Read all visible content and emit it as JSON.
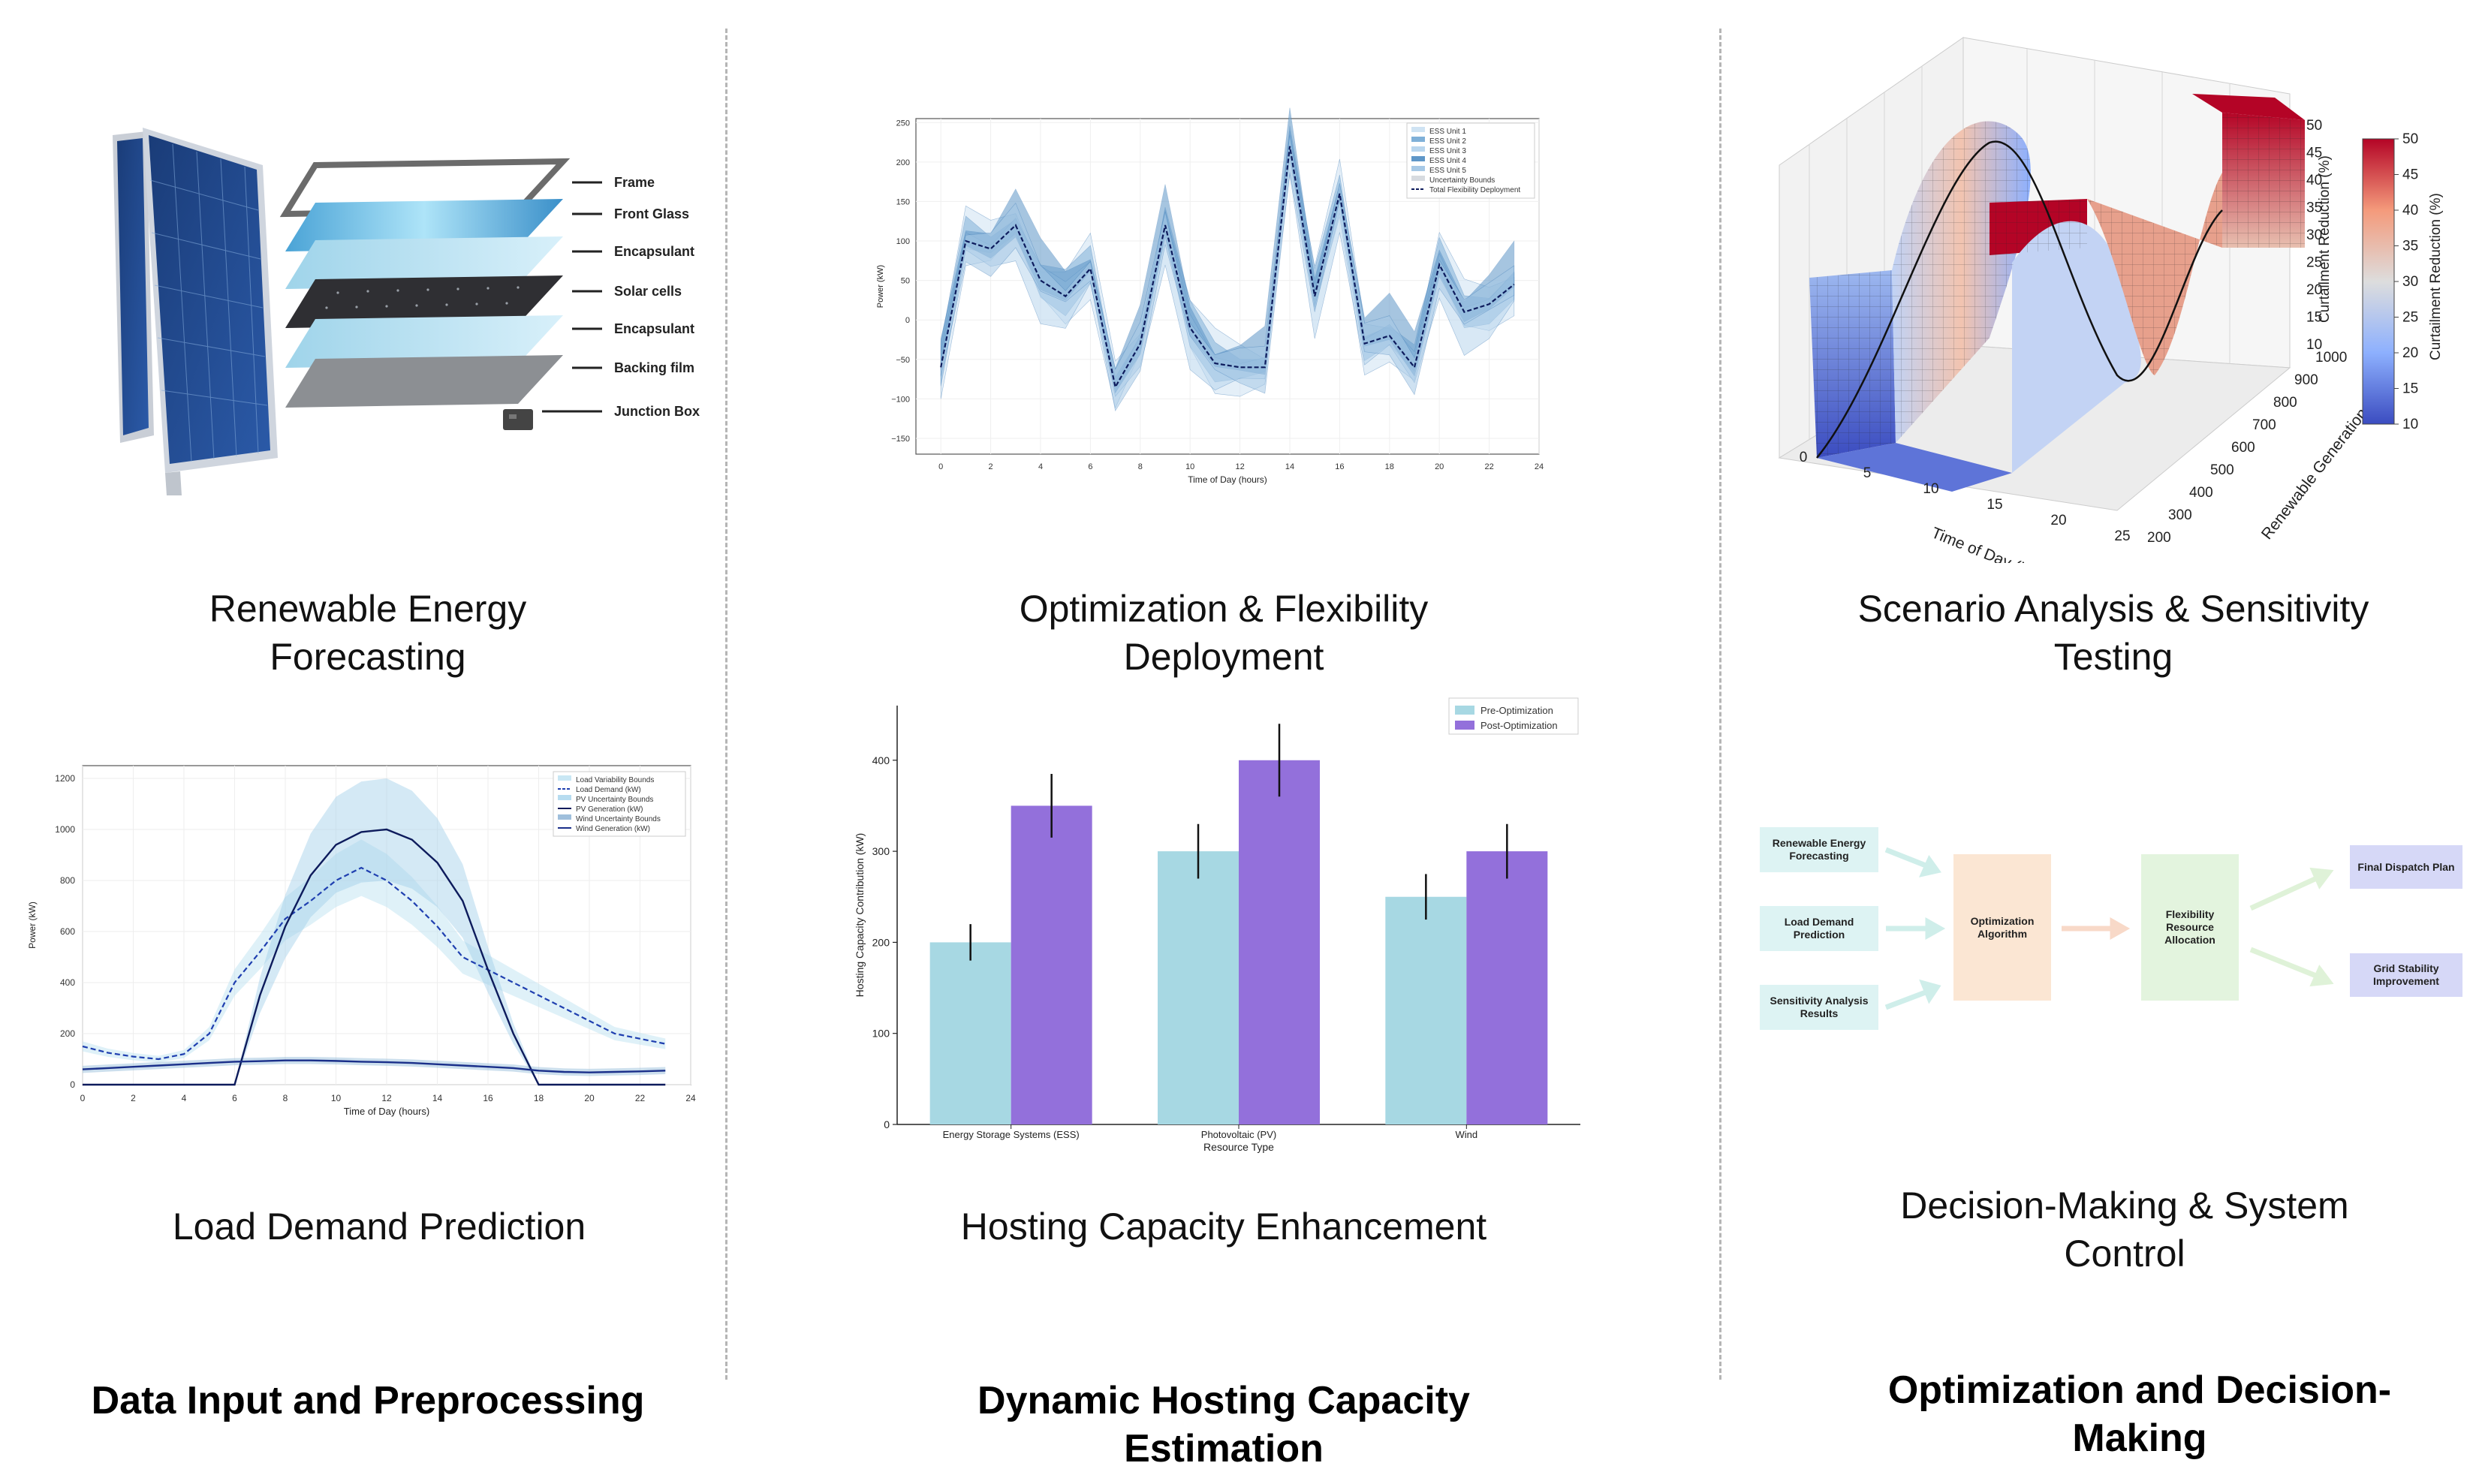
{
  "captions": {
    "forecasting": [
      "Renewable Energy",
      "Forecasting"
    ],
    "load": "Load Demand Prediction",
    "optimization": [
      "Optimization & Flexibility",
      "Deployment"
    ],
    "hosting": "Hosting Capacity Enhancement",
    "scenario": [
      "Scenario Analysis & Sensitivity",
      "Testing"
    ],
    "decision": [
      "Decision-Making & System",
      "Control"
    ]
  },
  "sections": {
    "col1": [
      "Data Input and Preprocessing"
    ],
    "col2": [
      "Dynamic Hosting Capacity",
      "Estimation"
    ],
    "col3": [
      "Optimization and Decision-",
      "Making"
    ]
  },
  "solar_panel": {
    "layers": [
      "Frame",
      "Front Glass",
      "Encapsulant",
      "Solar cells",
      "Encapsulant",
      "Backing film",
      "Junction Box"
    ]
  },
  "ess_chart": {
    "xlabel": "Time of Day (hours)",
    "ylabel": "Power (kW)",
    "legend": [
      "ESS Unit 1",
      "ESS Unit 2",
      "ESS Unit 3",
      "ESS Unit 4",
      "ESS Unit 5",
      "Uncertainty Bounds",
      "Total Flexibility Deployment"
    ],
    "x_ticks": [
      "0",
      "2",
      "4",
      "6",
      "8",
      "10",
      "12",
      "14",
      "16",
      "18",
      "20",
      "22",
      "24"
    ],
    "y_ticks": [
      "250",
      "200",
      "150",
      "100",
      "50",
      "0",
      "−50",
      "−100",
      "−150"
    ]
  },
  "surface_chart": {
    "x_title": "Time of Day (hours)",
    "y_title": "Renewable Generation (kW)",
    "z_title": "Curtailment Reduction (%)",
    "colorbar_title": "Curtailment Reduction (%)",
    "x_ticks": [
      "0",
      "5",
      "10",
      "15",
      "20",
      "25"
    ],
    "y_ticks": [
      "200",
      "300",
      "400",
      "500",
      "600",
      "700",
      "800",
      "900",
      "1000"
    ],
    "z_ticks": [
      "50",
      "45",
      "40",
      "35",
      "30",
      "25",
      "20",
      "15",
      "10"
    ],
    "colorbar_ticks": [
      "50",
      "45",
      "40",
      "35",
      "30",
      "25",
      "20",
      "15",
      "10"
    ]
  },
  "load_chart": {
    "xlabel": "Time of Day (hours)",
    "ylabel": "Power (kW)",
    "x_ticks": [
      "0",
      "2",
      "4",
      "6",
      "8",
      "10",
      "12",
      "14",
      "16",
      "18",
      "20",
      "22",
      "24"
    ],
    "y_ticks": [
      "1200",
      "1000",
      "800",
      "600",
      "400",
      "200",
      "0"
    ],
    "legend": [
      "Load Variability Bounds",
      "Load Demand (kW)",
      "PV Uncertainty Bounds",
      "PV Generation (kW)",
      "Wind Uncertainty Bounds",
      "Wind Generation (kW)"
    ]
  },
  "chart_data": [
    {
      "type": "line",
      "title": "Load Demand Prediction",
      "xlabel": "Time of Day (hours)",
      "ylabel": "Power (kW)",
      "x": [
        0,
        1,
        2,
        3,
        4,
        5,
        6,
        7,
        8,
        9,
        10,
        11,
        12,
        13,
        14,
        15,
        16,
        17,
        18,
        19,
        20,
        21,
        22,
        23
      ],
      "series": [
        {
          "name": "Load Demand (kW)",
          "values": [
            150,
            125,
            110,
            100,
            120,
            200,
            400,
            520,
            650,
            720,
            800,
            850,
            800,
            720,
            620,
            500,
            450,
            400,
            350,
            300,
            250,
            200,
            180,
            160
          ]
        },
        {
          "name": "PV Generation (kW)",
          "values": [
            0,
            0,
            0,
            0,
            0,
            0,
            0,
            350,
            620,
            820,
            940,
            990,
            1000,
            960,
            870,
            720,
            450,
            200,
            0,
            0,
            0,
            0,
            0,
            0
          ]
        },
        {
          "name": "Wind Generation (kW)",
          "values": [
            60,
            65,
            70,
            75,
            80,
            85,
            90,
            92,
            95,
            95,
            93,
            90,
            88,
            85,
            80,
            75,
            70,
            65,
            55,
            50,
            48,
            50,
            52,
            55
          ]
        }
      ],
      "xlim": [
        0,
        24
      ],
      "ylim": [
        0,
        1250
      ]
    },
    {
      "type": "line",
      "title": "Optimization & Flexibility Deployment",
      "xlabel": "Time of Day (hours)",
      "ylabel": "Power (kW)",
      "x": [
        0,
        1,
        2,
        3,
        4,
        5,
        6,
        7,
        8,
        9,
        10,
        11,
        12,
        13,
        14,
        15,
        16,
        17,
        18,
        19,
        20,
        21,
        22,
        23
      ],
      "series": [
        {
          "name": "Total Flexibility Deployment",
          "values": [
            -60,
            100,
            90,
            120,
            50,
            30,
            65,
            -85,
            -30,
            120,
            -10,
            -55,
            -60,
            -60,
            220,
            30,
            160,
            -30,
            -20,
            -60,
            70,
            10,
            20,
            45
          ]
        }
      ],
      "xlim": [
        -1,
        24
      ],
      "ylim": [
        -170,
        255
      ]
    },
    {
      "type": "bar",
      "title": "Hosting Capacity Enhancement",
      "xlabel": "Resource Type",
      "ylabel": "Hosting Capacity Contribution (kW)",
      "categories": [
        "Energy Storage Systems (ESS)",
        "Photovoltaic (PV)",
        "Wind"
      ],
      "series": [
        {
          "name": "Pre-Optimization",
          "values": [
            200,
            300,
            250
          ],
          "errors": [
            20,
            30,
            25
          ]
        },
        {
          "name": "Post-Optimization",
          "values": [
            350,
            400,
            300
          ],
          "errors": [
            35,
            40,
            30
          ]
        }
      ],
      "y_ticks": [
        0,
        100,
        200,
        300,
        400
      ],
      "ylim": [
        0,
        460
      ]
    }
  ],
  "flowchart": {
    "inputs": [
      "Renewable Energy Forecasting",
      "Load Demand Prediction",
      "Sensitivity Analysis Results"
    ],
    "optimization": "Optimization Algorithm",
    "allocation": "Flexibility Resource Allocation",
    "outputs": [
      "Final Dispatch Plan",
      "Grid Stability Improvement"
    ]
  },
  "colors": {
    "pre": "#a7d8e3",
    "post": "#9370db",
    "band": "#a6cfe8",
    "dark_line": "#0d1b5c",
    "ess_blue": "#6fa3cd"
  }
}
